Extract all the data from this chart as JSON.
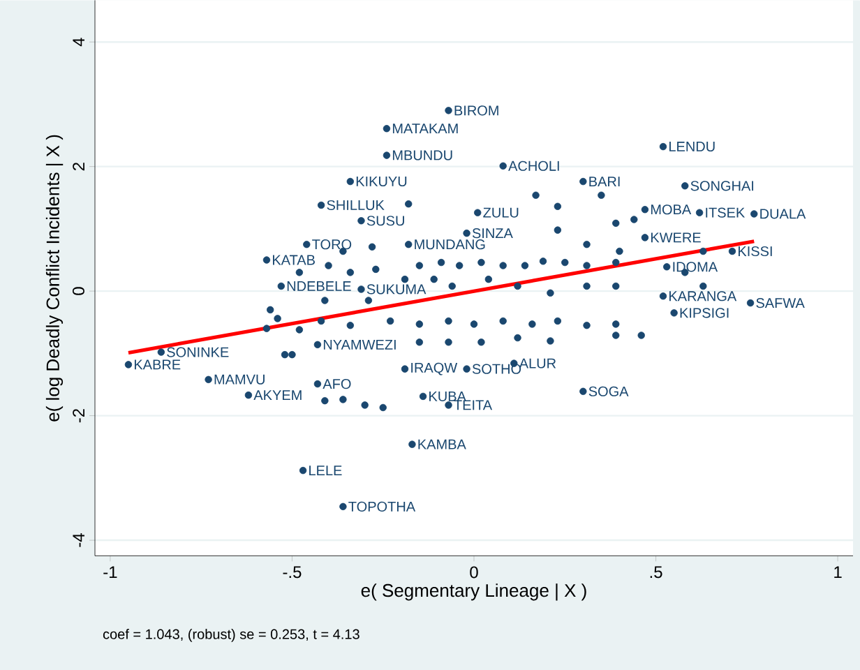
{
  "chart_data": {
    "type": "scatter",
    "xlabel": "e( Segmentary Lineage | X )",
    "ylabel": "e( log Deadly Conflict Incidents | X )",
    "xlim": [
      -1.042,
      1.042
    ],
    "ylim": [
      -4.25,
      4.67
    ],
    "xticks": [
      -1,
      {
        "value": -0.5,
        "label": "-.5"
      },
      0,
      {
        "value": 0.5,
        "label": ".5"
      },
      1
    ],
    "yticks": [
      -4,
      -2,
      0,
      2,
      4
    ],
    "grid": "y",
    "series": [
      {
        "marker": "circle",
        "color": "#1a476f",
        "x": [
          -0.07,
          -0.24,
          -0.24,
          -0.34,
          -0.42,
          -0.18,
          -0.31,
          -0.46,
          -0.18,
          -0.57,
          -0.31,
          -0.53,
          0.08,
          0.52,
          0.58,
          0.3,
          0.01,
          -0.02,
          0.62,
          0.77,
          0.44,
          0.47,
          0.47,
          0.71,
          0.53,
          0.76,
          0.52,
          0.55,
          0.3,
          0.11,
          -0.02,
          -0.19,
          -0.14,
          -0.07,
          -0.17,
          -0.47,
          -0.36,
          -0.43,
          -0.62,
          -0.73,
          -0.95,
          -0.86,
          -0.43,
          -0.15,
          -0.09,
          -0.04,
          0.02,
          0.08,
          0.14,
          0.19,
          0.25,
          0.31,
          0.39,
          -0.19,
          -0.11,
          -0.06,
          0.04,
          0.12,
          0.21,
          0.31,
          0.39,
          -0.23,
          -0.15,
          -0.07,
          0.0,
          0.08,
          0.16,
          0.23,
          0.31,
          0.39,
          -0.15,
          -0.07,
          0.02,
          0.12,
          0.21,
          -0.57,
          -0.54,
          -0.48,
          -0.42,
          -0.34,
          -0.56,
          -0.41,
          -0.29,
          -0.48,
          -0.4,
          -0.34,
          -0.27,
          -0.36,
          -0.28,
          0.17,
          0.23,
          0.35,
          0.39,
          0.23,
          0.31,
          0.4,
          0.63,
          0.58,
          0.63,
          0.39,
          0.46,
          -0.52,
          -0.5,
          -0.41,
          -0.36,
          -0.3,
          -0.25
        ],
        "values": [
          2.9,
          2.61,
          2.18,
          1.76,
          1.38,
          1.4,
          1.13,
          0.75,
          0.75,
          0.5,
          0.03,
          0.08,
          2.01,
          2.32,
          1.69,
          1.76,
          1.26,
          0.93,
          1.26,
          1.24,
          1.15,
          1.31,
          0.86,
          0.64,
          0.39,
          -0.19,
          -0.08,
          -0.35,
          -1.61,
          -1.16,
          -1.25,
          -1.25,
          -1.69,
          -1.83,
          -2.46,
          -2.88,
          -3.46,
          -1.49,
          -1.67,
          -1.42,
          -1.18,
          -0.98,
          -0.86,
          0.41,
          0.46,
          0.41,
          0.46,
          0.41,
          0.41,
          0.48,
          0.46,
          0.41,
          0.46,
          0.19,
          0.19,
          0.08,
          0.19,
          0.08,
          -0.03,
          0.08,
          0.08,
          -0.48,
          -0.53,
          -0.48,
          -0.53,
          -0.48,
          -0.53,
          -0.48,
          -0.55,
          -0.53,
          -0.82,
          -0.82,
          -0.82,
          -0.75,
          -0.8,
          -0.6,
          -0.44,
          -0.62,
          -0.48,
          -0.55,
          -0.3,
          -0.15,
          -0.15,
          0.3,
          0.41,
          0.3,
          0.35,
          0.64,
          0.71,
          1.54,
          1.36,
          1.54,
          1.09,
          0.98,
          0.75,
          0.64,
          0.64,
          0.3,
          0.08,
          -0.71,
          -0.71,
          -1.02,
          -1.02,
          -1.76,
          -1.74,
          -1.83,
          -1.87
        ]
      },
      {
        "type": "line",
        "marker": "none",
        "color": "#ff0000",
        "x": [
          -0.95,
          0.77
        ],
        "values": [
          -0.99,
          0.8
        ]
      }
    ],
    "annotations": [
      {
        "text": "BIROM",
        "x": -0.07,
        "y": 2.9
      },
      {
        "text": "MATAKAM",
        "x": -0.24,
        "y": 2.61
      },
      {
        "text": "MBUNDU",
        "x": -0.24,
        "y": 2.18
      },
      {
        "text": "KIKUYU",
        "x": -0.34,
        "y": 1.76
      },
      {
        "text": "SHILLUK",
        "x": -0.42,
        "y": 1.38
      },
      {
        "text": "SUSU",
        "x": -0.31,
        "y": 1.13
      },
      {
        "text": "TORO",
        "x": -0.46,
        "y": 0.75
      },
      {
        "text": "MUNDANG",
        "x": -0.18,
        "y": 0.75
      },
      {
        "text": "KATAB",
        "x": -0.57,
        "y": 0.5
      },
      {
        "text": "SUKUMA",
        "x": -0.31,
        "y": 0.03
      },
      {
        "text": "NDEBELE",
        "x": -0.53,
        "y": 0.08
      },
      {
        "text": "ACHOLI",
        "x": 0.08,
        "y": 2.01
      },
      {
        "text": "LENDU",
        "x": 0.52,
        "y": 2.32
      },
      {
        "text": "SONGHAI",
        "x": 0.58,
        "y": 1.69
      },
      {
        "text": "BARI",
        "x": 0.3,
        "y": 1.76
      },
      {
        "text": "ZULU",
        "x": 0.01,
        "y": 1.26
      },
      {
        "text": "SINZA",
        "x": -0.02,
        "y": 0.93
      },
      {
        "text": "ITSEK",
        "x": 0.62,
        "y": 1.26
      },
      {
        "text": "DUALA",
        "x": 0.77,
        "y": 1.24
      },
      {
        "text": "MOBA",
        "x": 0.47,
        "y": 1.31
      },
      {
        "text": "KWERE",
        "x": 0.47,
        "y": 0.86
      },
      {
        "text": "KISSI",
        "x": 0.71,
        "y": 0.64
      },
      {
        "text": "IDOMA",
        "x": 0.53,
        "y": 0.39
      },
      {
        "text": "SAFWA",
        "x": 0.76,
        "y": -0.19
      },
      {
        "text": "KARANGA",
        "x": 0.52,
        "y": -0.08
      },
      {
        "text": "KIPSIGI",
        "x": 0.55,
        "y": -0.35
      },
      {
        "text": "SOGA",
        "x": 0.3,
        "y": -1.61
      },
      {
        "text": "ALUR",
        "x": 0.11,
        "y": -1.16
      },
      {
        "text": "SOTHO",
        "x": -0.02,
        "y": -1.25
      },
      {
        "text": "IRAQW",
        "x": -0.19,
        "y": -1.25
      },
      {
        "text": "KUBA",
        "x": -0.14,
        "y": -1.69
      },
      {
        "text": "TEITA",
        "x": -0.07,
        "y": -1.83
      },
      {
        "text": "KAMBA",
        "x": -0.17,
        "y": -2.46
      },
      {
        "text": "LELE",
        "x": -0.47,
        "y": -2.88
      },
      {
        "text": "TOPOTHA",
        "x": -0.36,
        "y": -3.46
      },
      {
        "text": "AFO",
        "x": -0.43,
        "y": -1.49
      },
      {
        "text": "AKYEM",
        "x": -0.62,
        "y": -1.67
      },
      {
        "text": "MAMVU",
        "x": -0.73,
        "y": -1.42
      },
      {
        "text": "KABRE",
        "x": -0.95,
        "y": -1.18
      },
      {
        "text": "SONINKE",
        "x": -0.86,
        "y": -0.98
      },
      {
        "text": "NYAMWEZI",
        "x": -0.43,
        "y": -0.86
      },
      "coef = 1.043, (robust) se = 0.253, t = 4.13"
    ]
  }
}
